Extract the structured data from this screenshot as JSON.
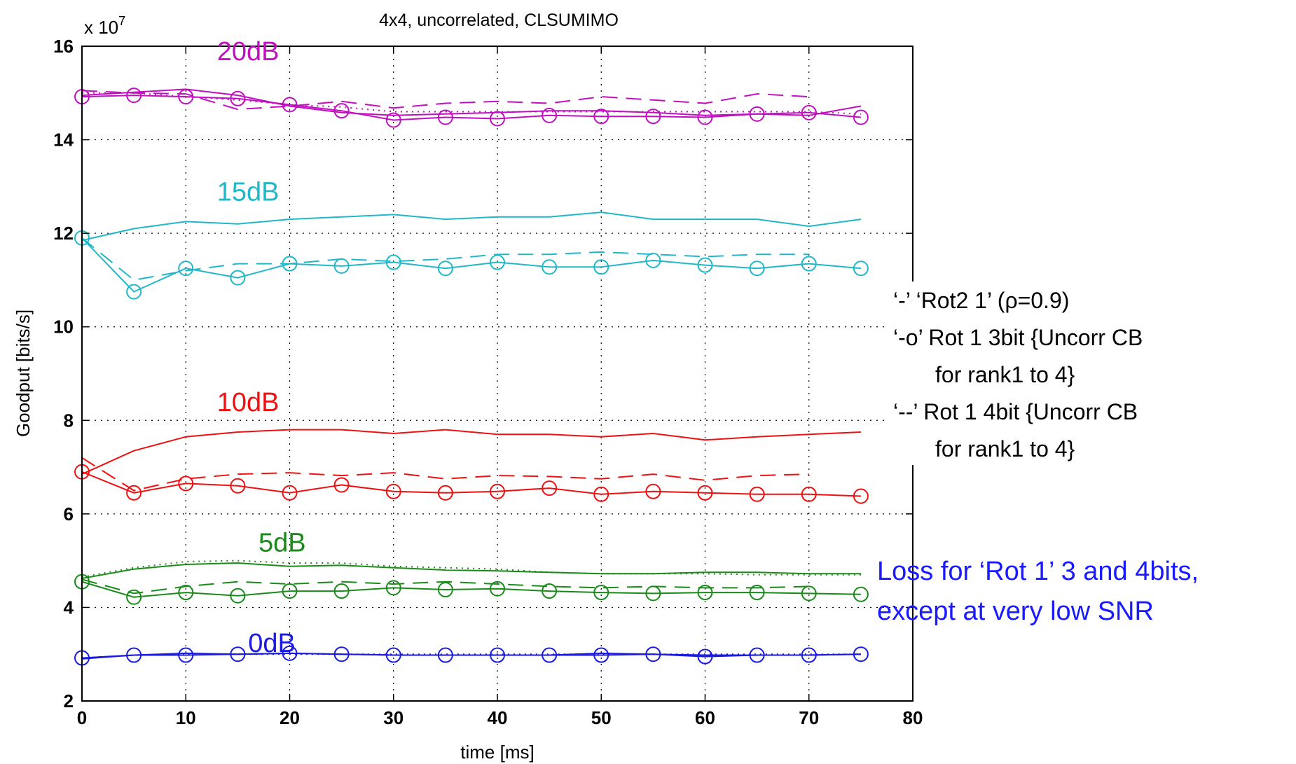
{
  "chart_data": {
    "type": "line",
    "title": "4x4, uncorrelated, CLSUMIMO",
    "xlabel": "time [ms]",
    "ylabel": "Goodput [bits/s]",
    "y_scale_label": "x 10",
    "y_scale_exponent": "7",
    "xlim": [
      0,
      80
    ],
    "ylim": [
      2,
      16
    ],
    "x_ticks": [
      0,
      10,
      20,
      30,
      40,
      50,
      60,
      70,
      80
    ],
    "y_ticks": [
      2,
      4,
      6,
      8,
      10,
      12,
      14,
      16
    ],
    "grid": true,
    "legend": {
      "placement": "right",
      "lines": [
        "‘-’ ‘Rot2 1’ (ρ=0.9)",
        "‘-o’ Rot 1 3bit {Uncorr CB",
        "for rank1 to 4}",
        "‘--’ Rot 1 4bit {Uncorr CB",
        "for rank1 to 4}"
      ]
    },
    "annotation": {
      "lines": [
        "Loss for ‘Rot 1’ 3 and 4bits,",
        "except at very low SNR"
      ],
      "color": "#1a1aff"
    },
    "groups": [
      {
        "label": "20dB",
        "color": "#c010c0",
        "label_pos": [
          13,
          15.7
        ],
        "series": [
          {
            "style": "solid",
            "x": [
              0,
              10,
              15,
              20,
              25,
              30,
              35,
              40,
              45,
              50,
              55,
              60,
              65,
              70,
              75
            ],
            "y": [
              14.95,
              15.08,
              14.95,
              14.72,
              14.58,
              14.52,
              14.55,
              14.58,
              14.62,
              14.62,
              14.58,
              14.52,
              14.55,
              14.52,
              14.72
            ]
          },
          {
            "style": "dotted",
            "x": [
              0,
              5,
              10,
              15,
              20,
              25,
              30,
              35,
              40,
              45,
              50,
              55,
              60,
              65,
              70,
              75
            ],
            "y": [
              15.0,
              15.0,
              14.92,
              14.85,
              14.75,
              14.7,
              14.6,
              14.6,
              14.6,
              14.6,
              14.6,
              14.6,
              14.6,
              14.6,
              14.6,
              14.55
            ]
          },
          {
            "style": "dashed",
            "x": [
              0,
              5,
              10,
              15,
              20,
              25,
              30,
              35,
              40,
              45,
              50,
              55,
              60,
              65,
              70
            ],
            "y": [
              15.05,
              15.0,
              14.98,
              14.65,
              14.72,
              14.82,
              14.68,
              14.78,
              14.82,
              14.78,
              14.92,
              14.85,
              14.78,
              14.98,
              14.92
            ]
          },
          {
            "style": "solid-o",
            "x": [
              0,
              5,
              10,
              15,
              20,
              25,
              30,
              35,
              40,
              45,
              50,
              55,
              60,
              65,
              70,
              75
            ],
            "y": [
              14.92,
              14.95,
              14.92,
              14.88,
              14.75,
              14.62,
              14.42,
              14.48,
              14.45,
              14.52,
              14.5,
              14.5,
              14.48,
              14.55,
              14.58,
              14.48
            ]
          }
        ]
      },
      {
        "label": "15dB",
        "color": "#20b8c8",
        "label_pos": [
          13,
          12.7
        ],
        "series": [
          {
            "style": "solid",
            "x": [
              0,
              5,
              10,
              15,
              20,
              25,
              30,
              35,
              40,
              45,
              50,
              55,
              60,
              65,
              70,
              75
            ],
            "y": [
              11.85,
              12.1,
              12.25,
              12.2,
              12.3,
              12.35,
              12.4,
              12.3,
              12.35,
              12.35,
              12.45,
              12.3,
              12.3,
              12.3,
              12.15,
              12.3
            ]
          },
          {
            "style": "dashed",
            "x": [
              0,
              5,
              10,
              15,
              20,
              25,
              30,
              35,
              40,
              45,
              50,
              55,
              60,
              65,
              70
            ],
            "y": [
              11.9,
              11.0,
              11.2,
              11.35,
              11.35,
              11.45,
              11.4,
              11.45,
              11.55,
              11.55,
              11.6,
              11.55,
              11.5,
              11.55,
              11.55
            ]
          },
          {
            "style": "solid-o",
            "x": [
              0,
              5,
              10,
              15,
              20,
              25,
              30,
              35,
              40,
              45,
              50,
              55,
              60,
              65,
              70,
              75
            ],
            "y": [
              11.9,
              10.75,
              11.25,
              11.05,
              11.35,
              11.3,
              11.38,
              11.25,
              11.38,
              11.28,
              11.28,
              11.42,
              11.32,
              11.25,
              11.35,
              11.25
            ]
          }
        ]
      },
      {
        "label": "10dB",
        "color": "#ee1111",
        "label_pos": [
          13,
          8.2
        ],
        "series": [
          {
            "style": "solid",
            "x": [
              0,
              5,
              10,
              15,
              20,
              25,
              30,
              35,
              40,
              45,
              50,
              55,
              60,
              65,
              70,
              75
            ],
            "y": [
              6.85,
              7.35,
              7.65,
              7.75,
              7.8,
              7.8,
              7.72,
              7.8,
              7.7,
              7.7,
              7.65,
              7.72,
              7.58,
              7.65,
              7.7,
              7.75
            ]
          },
          {
            "style": "dashed",
            "x": [
              0,
              5,
              10,
              15,
              20,
              25,
              30,
              35,
              40,
              45,
              50,
              55,
              60,
              65,
              70
            ],
            "y": [
              7.2,
              6.5,
              6.75,
              6.85,
              6.88,
              6.82,
              6.88,
              6.75,
              6.82,
              6.8,
              6.75,
              6.85,
              6.72,
              6.82,
              6.85
            ]
          },
          {
            "style": "solid-o",
            "x": [
              0,
              5,
              10,
              15,
              20,
              25,
              30,
              35,
              40,
              45,
              50,
              55,
              60,
              65,
              70,
              75
            ],
            "y": [
              6.9,
              6.45,
              6.65,
              6.6,
              6.45,
              6.62,
              6.48,
              6.45,
              6.48,
              6.55,
              6.42,
              6.48,
              6.45,
              6.42,
              6.42,
              6.38
            ]
          }
        ]
      },
      {
        "label": "5dB",
        "color": "#1a8a1a",
        "label_pos": [
          17,
          5.2
        ],
        "series": [
          {
            "style": "solid",
            "x": [
              0,
              5,
              10,
              15,
              20,
              25,
              30,
              35,
              40,
              45,
              50,
              55,
              60,
              65,
              70,
              75
            ],
            "y": [
              4.62,
              4.82,
              4.92,
              4.95,
              4.88,
              4.9,
              4.85,
              4.8,
              4.78,
              4.75,
              4.72,
              4.72,
              4.75,
              4.75,
              4.72,
              4.72
            ]
          },
          {
            "style": "dotted",
            "x": [
              0,
              5,
              10,
              15,
              20,
              25,
              30,
              35,
              40,
              45,
              50,
              55,
              60,
              65,
              70,
              75
            ],
            "y": [
              4.65,
              4.85,
              4.98,
              5.0,
              4.95,
              4.95,
              4.88,
              4.85,
              4.82,
              4.75,
              4.72,
              4.72,
              4.72,
              4.7,
              4.7,
              4.7
            ]
          },
          {
            "style": "dashed",
            "x": [
              0,
              5,
              10,
              15,
              20,
              25,
              30,
              35,
              40,
              45,
              50,
              55,
              60,
              65,
              70
            ],
            "y": [
              4.6,
              4.3,
              4.45,
              4.55,
              4.5,
              4.55,
              4.5,
              4.55,
              4.5,
              4.45,
              4.42,
              4.45,
              4.42,
              4.42,
              4.45
            ]
          },
          {
            "style": "solid-o",
            "x": [
              0,
              5,
              10,
              15,
              20,
              25,
              30,
              35,
              40,
              45,
              50,
              55,
              60,
              65,
              70,
              75
            ],
            "y": [
              4.55,
              4.22,
              4.32,
              4.25,
              4.35,
              4.35,
              4.42,
              4.38,
              4.4,
              4.35,
              4.32,
              4.3,
              4.32,
              4.32,
              4.3,
              4.28
            ]
          }
        ]
      },
      {
        "label": "0dB",
        "color": "#1a1ae0",
        "label_pos": [
          16,
          3.05
        ],
        "series": [
          {
            "style": "solid",
            "x": [
              0,
              5,
              10,
              15,
              20,
              25,
              30,
              35,
              40,
              45,
              50,
              55,
              60,
              65,
              70,
              75
            ],
            "y": [
              2.9,
              2.98,
              3.02,
              3.0,
              3.02,
              3.0,
              2.98,
              2.98,
              2.98,
              2.98,
              3.02,
              3.0,
              2.98,
              2.98,
              2.98,
              3.0
            ]
          },
          {
            "style": "dotted",
            "x": [
              0,
              5,
              10,
              15,
              20,
              25,
              30,
              35,
              40,
              45,
              50,
              55,
              60,
              65,
              70,
              75
            ],
            "y": [
              2.92,
              2.98,
              3.0,
              3.0,
              3.0,
              3.0,
              3.0,
              3.0,
              3.0,
              3.0,
              3.0,
              3.0,
              3.0,
              3.0,
              3.0,
              3.0
            ]
          },
          {
            "style": "solid-o",
            "x": [
              0,
              5,
              10,
              15,
              20,
              25,
              30,
              35,
              40,
              45,
              50,
              55,
              60,
              65,
              70,
              75
            ],
            "y": [
              2.92,
              2.98,
              2.98,
              3.0,
              3.02,
              3.0,
              2.98,
              2.98,
              2.98,
              2.98,
              2.98,
              3.0,
              2.95,
              2.98,
              2.98,
              3.0
            ]
          }
        ]
      }
    ]
  }
}
